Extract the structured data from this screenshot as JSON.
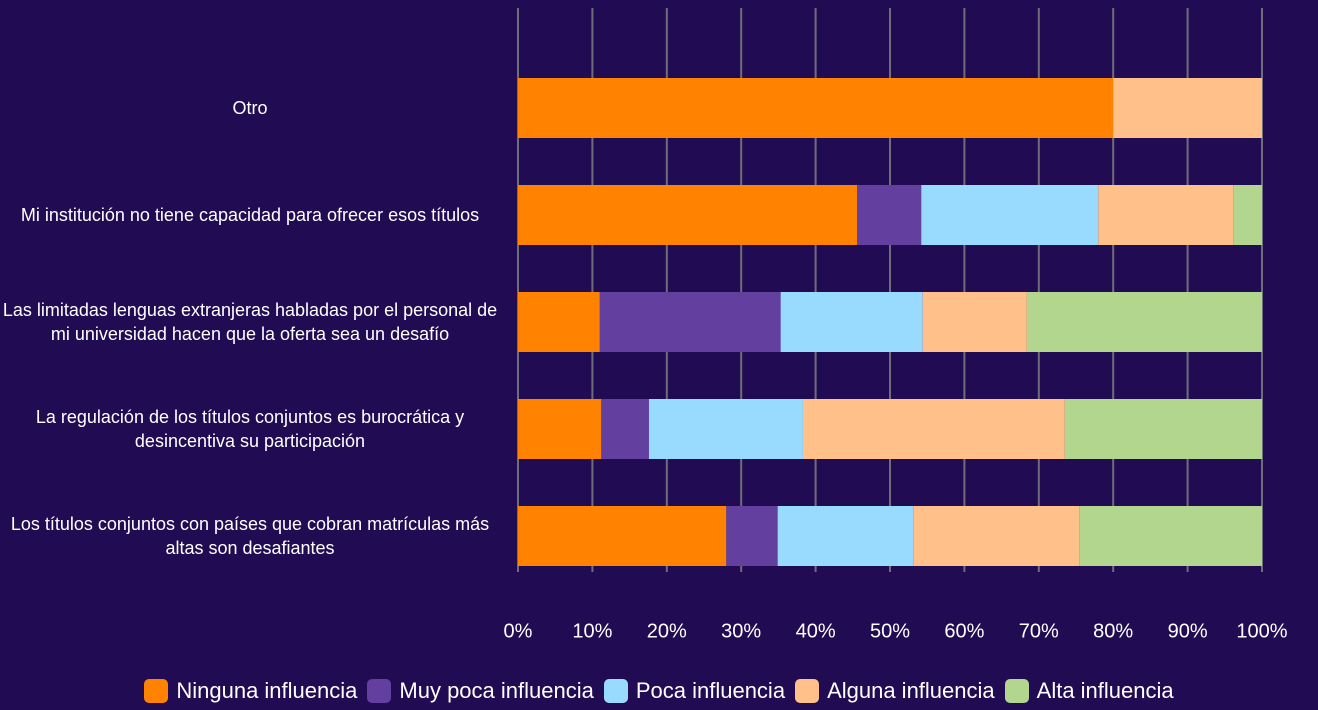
{
  "chart_data": {
    "type": "stacked-bar-horizontal",
    "categories": [
      "Otro",
      "Mi institución no tiene capacidad para ofrecer esos títulos",
      "Las limitadas lenguas extranjeras habladas por el personal de mi universidad hacen que la oferta sea un desafío",
      "La regulación de los títulos conjuntos es burocrática y desincentiva su participación",
      "Los títulos conjuntos con países que cobran matrículas más altas son desafiantes"
    ],
    "series": [
      {
        "name": "Ninguna influencia",
        "color": "#ff8200",
        "values": [
          80,
          45.6,
          11,
          11.2,
          28
        ]
      },
      {
        "name": "Muy poca influencia",
        "color": "#6340a0",
        "values": [
          0,
          8.6,
          24.3,
          6.4,
          6.9
        ]
      },
      {
        "name": "Poca influencia",
        "color": "#99dbff",
        "values": [
          0,
          23.8,
          19.1,
          20.7,
          18.3
        ]
      },
      {
        "name": "Alguna influencia",
        "color": "#ffc08a",
        "values": [
          20,
          18.2,
          14,
          35.2,
          22.3
        ]
      },
      {
        "name": "Alta influencia",
        "color": "#b3d68e",
        "values": [
          0,
          3.8,
          31.6,
          26.5,
          24.5
        ]
      }
    ],
    "xlim": [
      0,
      100
    ],
    "xticks": [
      {
        "value": 0,
        "label": "0%"
      },
      {
        "value": 10,
        "label": "10%"
      },
      {
        "value": 20,
        "label": "20%"
      },
      {
        "value": 30,
        "label": "30%"
      },
      {
        "value": 40,
        "label": "40%"
      },
      {
        "value": 50,
        "label": "50%"
      },
      {
        "value": 60,
        "label": "60%"
      },
      {
        "value": 70,
        "label": "70%"
      },
      {
        "value": 80,
        "label": "80%"
      },
      {
        "value": 90,
        "label": "90%"
      },
      {
        "value": 100,
        "label": "100%"
      }
    ],
    "grid": true,
    "legend": "bottom"
  }
}
